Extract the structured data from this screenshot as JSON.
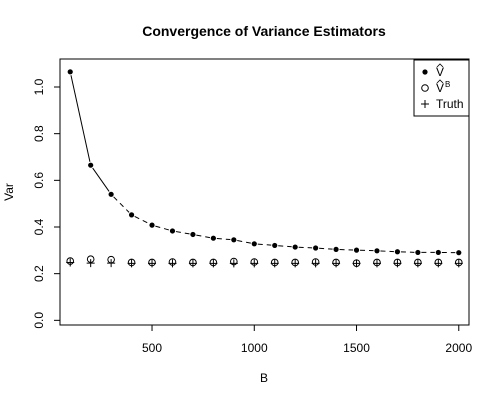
{
  "chart_data": {
    "type": "scatter",
    "title": "Convergence of Variance Estimators",
    "xlabel": "B",
    "ylabel": "Var",
    "xlim": [
      50,
      2050
    ],
    "ylim": [
      -0.02,
      1.12
    ],
    "xticks": [
      500,
      1000,
      1500,
      2000
    ],
    "yticks": [
      0.0,
      0.2,
      0.4,
      0.6,
      0.8,
      1.0
    ],
    "xtick_labels": [
      "500",
      "1000",
      "1500",
      "2000"
    ],
    "ytick_labels": [
      "0.0",
      "0.2",
      "0.4",
      "0.6",
      "0.8",
      "1.0"
    ],
    "legend_position": "top-right",
    "x": [
      100,
      200,
      300,
      400,
      500,
      600,
      700,
      800,
      900,
      1000,
      1100,
      1200,
      1300,
      1400,
      1500,
      1600,
      1700,
      1800,
      1900,
      2000
    ],
    "series": [
      {
        "name": "V̂",
        "marker": "filled-circle",
        "values": [
          1.065,
          0.665,
          0.54,
          0.452,
          0.408,
          0.383,
          0.368,
          0.352,
          0.345,
          0.328,
          0.321,
          0.314,
          0.31,
          0.304,
          0.301,
          0.298,
          0.294,
          0.291,
          0.291,
          0.29
        ],
        "line": "solid-to-dashed"
      },
      {
        "name": "V̂ᴮ",
        "marker": "open-circle",
        "values": [
          0.254,
          0.262,
          0.26,
          0.248,
          0.248,
          0.25,
          0.248,
          0.248,
          0.252,
          0.25,
          0.248,
          0.248,
          0.25,
          0.248,
          0.245,
          0.248,
          0.248,
          0.248,
          0.248,
          0.248
        ]
      },
      {
        "name": "Truth",
        "marker": "plus",
        "values": [
          0.248,
          0.245,
          0.245,
          0.244,
          0.244,
          0.244,
          0.244,
          0.244,
          0.244,
          0.244,
          0.244,
          0.244,
          0.244,
          0.244,
          0.244,
          0.244,
          0.244,
          0.244,
          0.244,
          0.244
        ]
      }
    ],
    "legend": [
      {
        "label": "V",
        "sup": "",
        "symbol": "filled-circle"
      },
      {
        "label": "V",
        "sup": "B",
        "symbol": "open-circle"
      },
      {
        "label": "Truth",
        "sup": "",
        "symbol": "plus"
      }
    ],
    "colors": {
      "ink": "#000000",
      "background": "#ffffff"
    }
  }
}
